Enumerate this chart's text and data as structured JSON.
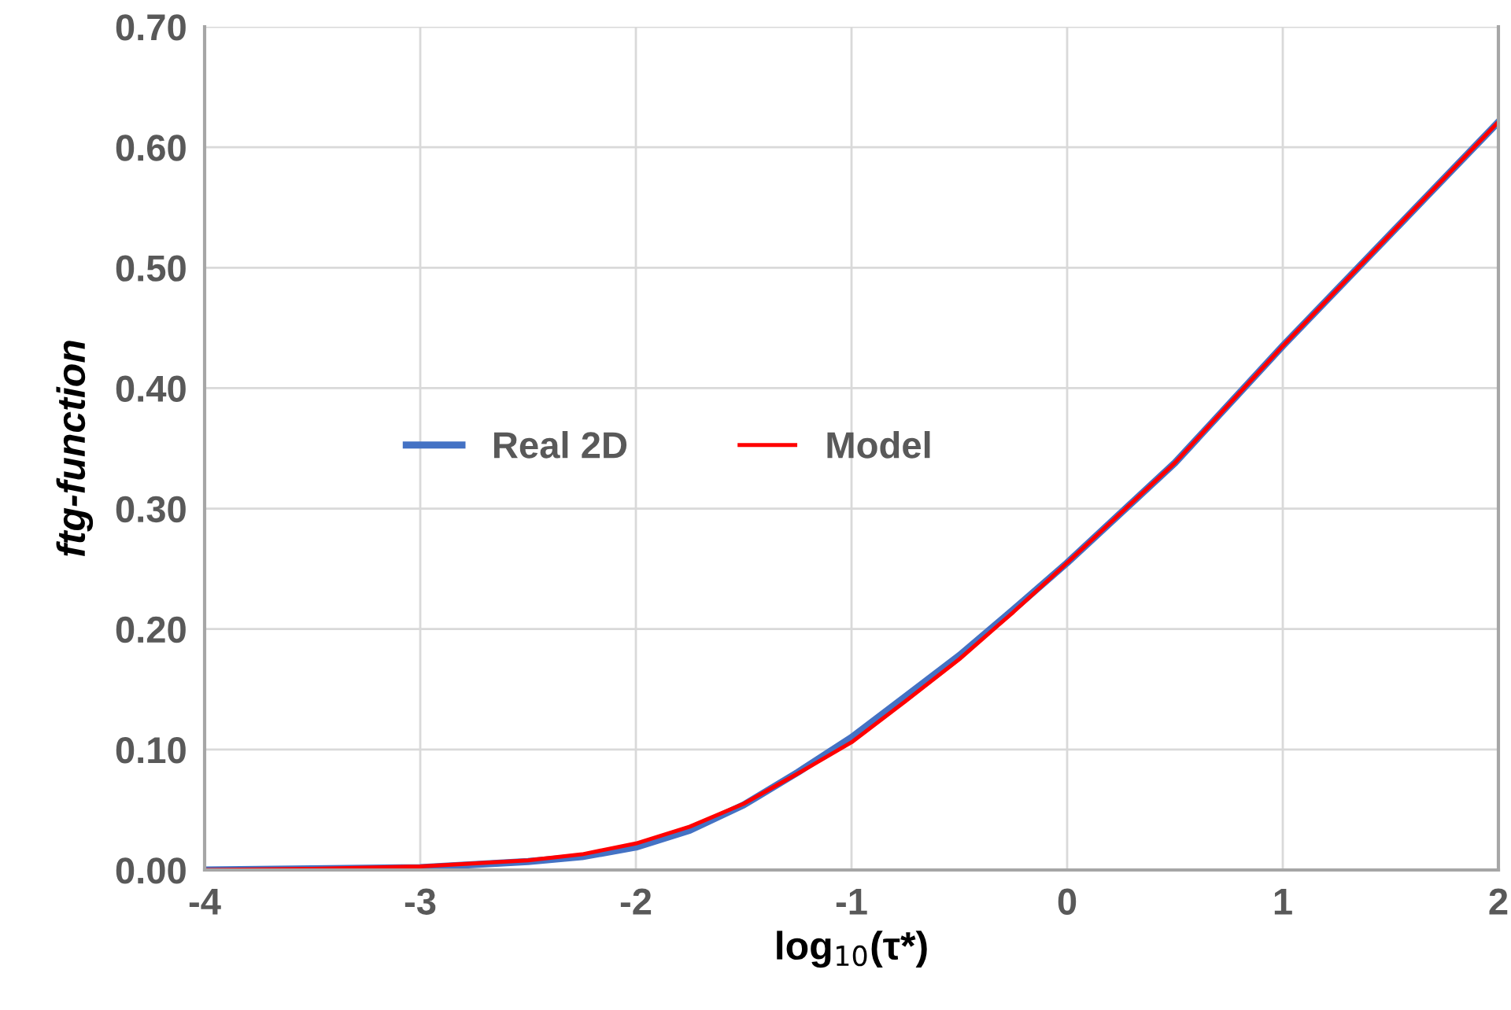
{
  "chart_data": {
    "type": "line",
    "xlabel": "log$_{10}$(τ*)",
    "ylabel": "ftg-function",
    "xlim": [
      -4,
      2
    ],
    "xticks": [
      -4,
      -3,
      -2,
      -1,
      0,
      1,
      2
    ],
    "ylim": [
      0,
      0.7
    ],
    "yticks": [
      {
        "value": 0,
        "label": "0.00"
      },
      {
        "value": 0.1,
        "label": "0.10"
      },
      {
        "value": 0.2,
        "label": "0.20"
      },
      {
        "value": 0.3,
        "label": "0.30"
      },
      {
        "value": 0.4,
        "label": "0.40"
      },
      {
        "value": 0.5,
        "label": "0.50"
      },
      {
        "value": 0.6,
        "label": "0.60"
      },
      {
        "value": 0.7,
        "label": "0.70"
      }
    ],
    "grid": true,
    "legend": "left",
    "marker": "none",
    "line_style": "solid",
    "series": [
      {
        "name": "Real 2D",
        "color": "#4472c4",
        "x": [
          -4,
          -3.5,
          -3,
          -2.5,
          -2.25,
          -2,
          -1.75,
          -1.5,
          -1.25,
          -1,
          -0.75,
          -0.5,
          -0.25,
          0,
          0.5,
          1,
          1.5,
          2
        ],
        "values": [
          0.0,
          0.001,
          0.002,
          0.007,
          0.011,
          0.019,
          0.033,
          0.054,
          0.081,
          0.11,
          0.144,
          0.178,
          0.216,
          0.255,
          0.338,
          0.435,
          0.528,
          0.621
        ]
      },
      {
        "name": "Model",
        "color": "#ff0000",
        "x": [
          -4,
          -3.5,
          -3,
          -2.5,
          -2.25,
          -2,
          -1.75,
          -1.5,
          -1.25,
          -1,
          -0.75,
          -0.5,
          -0.25,
          0,
          0.5,
          1,
          1.5,
          2
        ],
        "values": [
          0.0,
          0.001,
          0.003,
          0.008,
          0.013,
          0.022,
          0.036,
          0.055,
          0.08,
          0.106,
          0.14,
          0.175,
          0.214,
          0.255,
          0.338,
          0.435,
          0.528,
          0.621
        ]
      }
    ]
  }
}
